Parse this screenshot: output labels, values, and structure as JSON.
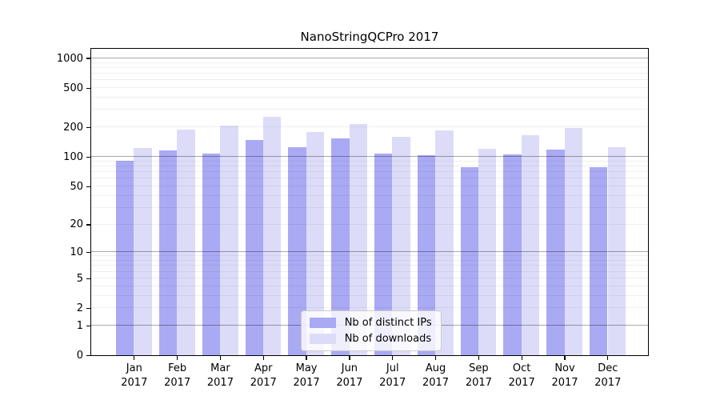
{
  "title": "NanoStringQCPro 2017",
  "chart_data": {
    "type": "bar",
    "title": "NanoStringQCPro 2017",
    "xlabel": "",
    "ylabel": "",
    "x_tick_labels": [
      {
        "month": "Jan",
        "year": "2017"
      },
      {
        "month": "Feb",
        "year": "2017"
      },
      {
        "month": "Mar",
        "year": "2017"
      },
      {
        "month": "Apr",
        "year": "2017"
      },
      {
        "month": "May",
        "year": "2017"
      },
      {
        "month": "Jun",
        "year": "2017"
      },
      {
        "month": "Jul",
        "year": "2017"
      },
      {
        "month": "Aug",
        "year": "2017"
      },
      {
        "month": "Sep",
        "year": "2017"
      },
      {
        "month": "Oct",
        "year": "2017"
      },
      {
        "month": "Nov",
        "year": "2017"
      },
      {
        "month": "Dec",
        "year": "2017"
      }
    ],
    "series": [
      {
        "name": "Nb of distinct IPs",
        "color": "#a9a9f4",
        "values": [
          92,
          117,
          108,
          150,
          126,
          153,
          108,
          105,
          79,
          106,
          118,
          78
        ]
      },
      {
        "name": "Nb of downloads",
        "color": "#dcdcf9",
        "values": [
          123,
          191,
          207,
          258,
          181,
          215,
          159,
          186,
          122,
          165,
          196,
          126
        ]
      }
    ],
    "y_axis": {
      "scale": "log1p",
      "ticks": [
        1000,
        500,
        200,
        100,
        50,
        20,
        10,
        5,
        2,
        1,
        0
      ],
      "major_gridlines": [
        1,
        10,
        100,
        1000
      ],
      "ylim": [
        0,
        1100
      ]
    },
    "legend": {
      "position": "bottom-center"
    }
  }
}
